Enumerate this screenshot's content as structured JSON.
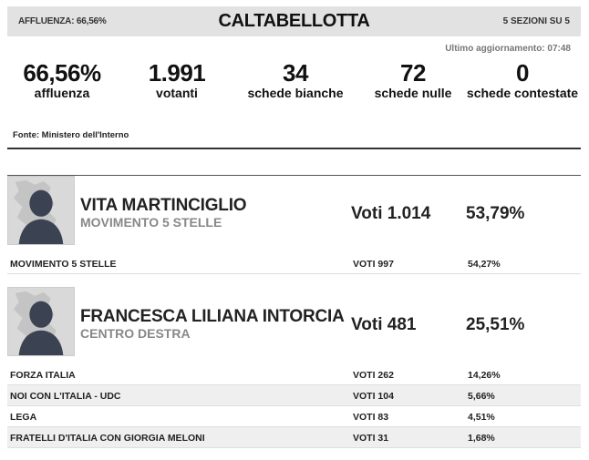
{
  "header": {
    "affluenza": "AFFLUENZA: 66,56%",
    "title": "CALTABELLOTTA",
    "sezioni": "5 SEZIONI SU 5"
  },
  "updated": "Ultimo aggiornamento: 07:48",
  "stats": [
    {
      "value": "66,56%",
      "label": "affluenza"
    },
    {
      "value": "1.991",
      "label": "votanti"
    },
    {
      "value": "34",
      "label": "schede bianche"
    },
    {
      "value": "72",
      "label": "schede nulle"
    },
    {
      "value": "0",
      "label": "schede contestate"
    }
  ],
  "fonte": "Fonte: Ministero dell'Interno",
  "candidates": [
    {
      "name": "VITA MARTINCIGLIO",
      "party": "MOVIMENTO 5 STELLE",
      "votes": "Voti 1.014",
      "pct": "53,79%",
      "lists": [
        {
          "party": "MOVIMENTO 5 STELLE",
          "votes": "VOTI 997",
          "pct": "54,27%"
        }
      ]
    },
    {
      "name": "FRANCESCA LILIANA INTORCIA",
      "party": "CENTRO DESTRA",
      "votes": "Voti 481",
      "pct": "25,51%",
      "lists": [
        {
          "party": "FORZA ITALIA",
          "votes": "VOTI 262",
          "pct": "14,26%"
        },
        {
          "party": "NOI CON L'ITALIA - UDC",
          "votes": "VOTI 104",
          "pct": "5,66%"
        },
        {
          "party": "LEGA",
          "votes": "VOTI 83",
          "pct": "4,51%"
        },
        {
          "party": "FRATELLI D'ITALIA CON GIORGIA MELONI",
          "votes": "VOTI 31",
          "pct": "1,68%"
        }
      ]
    }
  ]
}
